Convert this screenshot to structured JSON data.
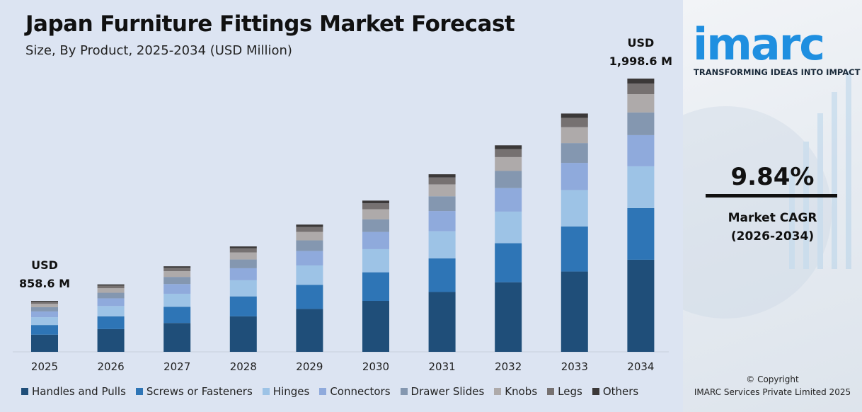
{
  "header": {
    "title": "Japan Furniture Fittings Market Forecast",
    "subtitle": "Size, By Product, 2025-2034 (USD Million)"
  },
  "chart_data": {
    "type": "bar",
    "stacked": true,
    "title": "Japan Furniture Fittings Market Forecast",
    "subtitle": "Size, By Product, 2025-2034 (USD Million)",
    "categories": [
      "2025",
      "2026",
      "2027",
      "2028",
      "2029",
      "2030",
      "2031",
      "2032",
      "2033",
      "2034"
    ],
    "totals": [
      858.6,
      943.1,
      1035.9,
      1137.8,
      1249.8,
      1372.8,
      1507.9,
      1656.3,
      1819.3,
      1998.6
    ],
    "annotations": [
      {
        "category": "2025",
        "line1": "USD",
        "line2": "858.6 M"
      },
      {
        "category": "2034",
        "line1": "USD",
        "line2": "1,998.6 M"
      }
    ],
    "series": [
      {
        "name": "Handles and Pulls",
        "color": "#1f4e79",
        "share": 0.337
      },
      {
        "name": "Screws or Fasteners",
        "color": "#2e75b6",
        "share": 0.189
      },
      {
        "name": "Hinges",
        "color": "#9dc3e6",
        "share": 0.153
      },
      {
        "name": "Connectors",
        "color": "#8faadc",
        "share": 0.114
      },
      {
        "name": "Drawer Slides",
        "color": "#8497b0",
        "share": 0.083
      },
      {
        "name": "Knobs",
        "color": "#aeaaaa",
        "share": 0.067
      },
      {
        "name": "Legs",
        "color": "#767171",
        "share": 0.039
      },
      {
        "name": "Others",
        "color": "#3b3838",
        "share": 0.018
      }
    ],
    "legend_position": "bottom",
    "grid": false
  },
  "sidebar": {
    "logo": "imarc",
    "tagline": "TRANSFORMING IDEAS INTO IMPACT",
    "cagr_value": "9.84%",
    "cagr_label": "Market CAGR",
    "cagr_period": "(2026-2034)",
    "copyright": "© Copyright",
    "company": "IMARC Services Private Limited 2025"
  }
}
